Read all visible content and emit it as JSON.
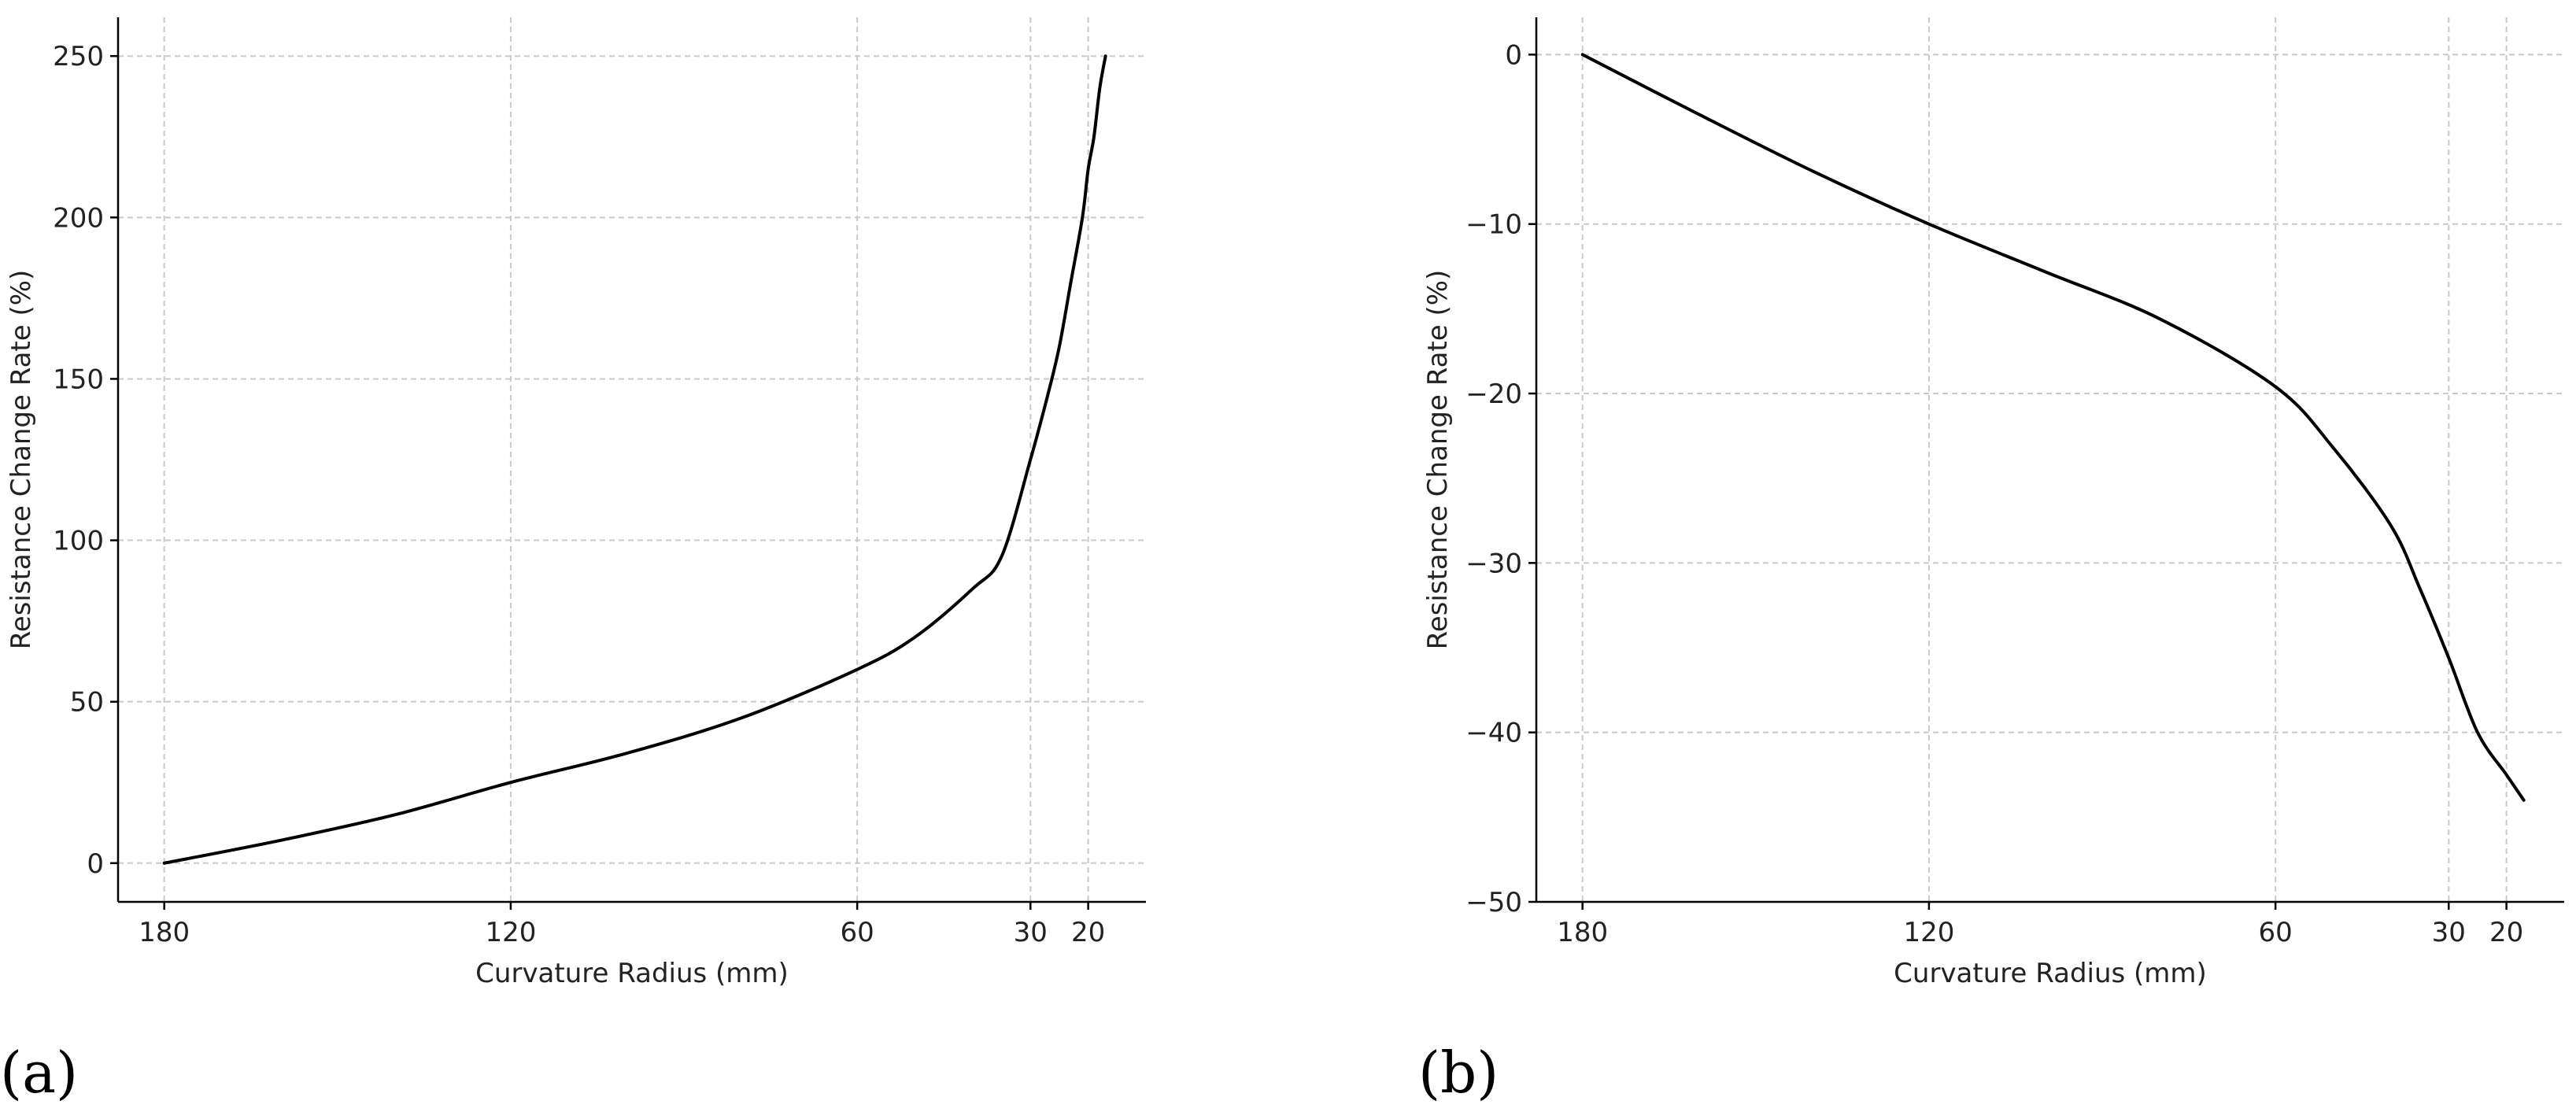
{
  "chart_data": [
    {
      "type": "line",
      "panel_label": "(a)",
      "xlabel": "Curvature Radius (mm)",
      "ylabel": "Resistance Change Rate (%)",
      "x_axis_reversed": true,
      "xlim": [
        188,
        10
      ],
      "ylim": [
        -12,
        262
      ],
      "xticks": [
        180,
        120,
        60,
        30,
        20
      ],
      "yticks": [
        0,
        50,
        100,
        150,
        200,
        250
      ],
      "grid": true,
      "series": [
        {
          "x": [
            180,
            160,
            140,
            120,
            100,
            80,
            60,
            50,
            40,
            35,
            30,
            27,
            25,
            23,
            21,
            20,
            19,
            18,
            17
          ],
          "y": [
            0,
            7,
            15,
            25,
            34,
            45,
            60,
            70,
            85,
            95,
            125,
            145,
            160,
            180,
            200,
            215,
            225,
            240,
            250
          ]
        }
      ]
    },
    {
      "type": "line",
      "panel_label": "(b)",
      "xlabel": "Curvature Radius (mm)",
      "ylabel": "Resistance Change Rate (%)",
      "x_axis_reversed": true,
      "xlim": [
        188,
        10
      ],
      "ylim": [
        -50,
        2.2
      ],
      "xticks": [
        180,
        120,
        60,
        30,
        20
      ],
      "yticks": [
        0,
        -10,
        -20,
        -30,
        -40,
        -50
      ],
      "grid": true,
      "series": [
        {
          "x": [
            180,
            160,
            140,
            120,
            100,
            80,
            60,
            50,
            40,
            35,
            30,
            25,
            20,
            17
          ],
          "y": [
            0,
            -3.5,
            -6.9,
            -10.0,
            -12.8,
            -15.6,
            -19.6,
            -23.2,
            -27.8,
            -31.5,
            -35.6,
            -40.0,
            -42.5,
            -44.0
          ]
        }
      ]
    }
  ]
}
